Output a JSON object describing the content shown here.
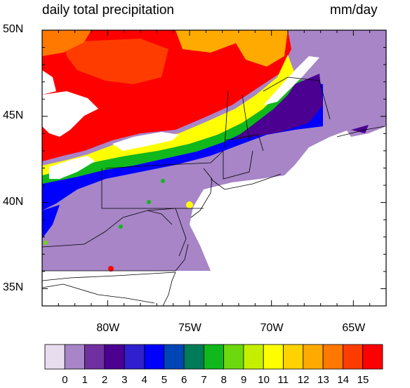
{
  "title": {
    "left": "daily total precipitation",
    "right": "mm/day"
  },
  "map": {
    "lon_range": [
      -84,
      -63
    ],
    "lat_range": [
      34,
      50
    ],
    "y_tick_labels": [
      {
        "lat": 50,
        "label": "50N"
      },
      {
        "lat": 45,
        "label": "45N"
      },
      {
        "lat": 40,
        "label": "40N"
      },
      {
        "lat": 35,
        "label": "35N"
      }
    ],
    "x_tick_labels": [
      {
        "lon": -80,
        "label": "80W"
      },
      {
        "lon": -75,
        "label": "75W"
      },
      {
        "lon": -70,
        "label": "70W"
      },
      {
        "lon": -65,
        "label": "65W"
      }
    ],
    "background_color": "#a785c7"
  },
  "colorbar": {
    "labels": [
      "0",
      "1",
      "2",
      "3",
      "4",
      "5",
      "6",
      "7",
      "8",
      "9",
      "10",
      "11",
      "12",
      "13",
      "14",
      "15"
    ],
    "colors": [
      "#e8dcef",
      "#a785c7",
      "#7030a0",
      "#4b0091",
      "#2f1fcf",
      "#0000ff",
      "#0045b5",
      "#007b57",
      "#10b81c",
      "#6cd80e",
      "#c4f000",
      "#ffff00",
      "#ffd200",
      "#ffaa00",
      "#ff7800",
      "#ff3c00",
      "#ff0000"
    ]
  }
}
